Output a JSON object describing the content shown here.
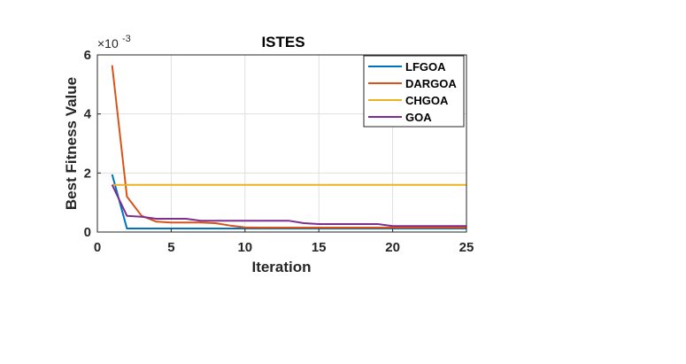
{
  "chart_data": {
    "type": "line",
    "title": "ISTES",
    "xlabel": "Iteration",
    "ylabel": "Best Fitness Value",
    "y_exponent_base": "×10",
    "y_exponent_power": "-3",
    "xlim": [
      0,
      25
    ],
    "ylim": [
      0,
      6
    ],
    "xticks": [
      0,
      5,
      10,
      15,
      20,
      25
    ],
    "yticks": [
      0,
      2,
      4,
      6
    ],
    "grid": true,
    "legend_position": "top-right",
    "x": [
      1,
      2,
      3,
      4,
      5,
      6,
      7,
      8,
      9,
      10,
      11,
      12,
      13,
      14,
      15,
      16,
      17,
      18,
      19,
      20,
      21,
      22,
      23,
      24,
      25
    ],
    "series": [
      {
        "name": "LFGOA",
        "color": "#0072BD",
        "values": [
          1.95,
          0.12,
          0.12,
          0.12,
          0.12,
          0.12,
          0.12,
          0.12,
          0.12,
          0.12,
          0.12,
          0.12,
          0.12,
          0.12,
          0.12,
          0.12,
          0.12,
          0.12,
          0.12,
          0.12,
          0.12,
          0.12,
          0.12,
          0.12,
          0.12
        ]
      },
      {
        "name": "DARGOA",
        "color": "#D95319",
        "values": [
          5.65,
          1.2,
          0.55,
          0.35,
          0.32,
          0.32,
          0.32,
          0.3,
          0.22,
          0.16,
          0.15,
          0.15,
          0.15,
          0.15,
          0.15,
          0.15,
          0.15,
          0.15,
          0.15,
          0.15,
          0.15,
          0.15,
          0.15,
          0.15,
          0.15
        ]
      },
      {
        "name": "CHGOA",
        "color": "#EDB120",
        "values": [
          1.6,
          1.6,
          1.6,
          1.6,
          1.6,
          1.6,
          1.6,
          1.6,
          1.6,
          1.6,
          1.6,
          1.6,
          1.6,
          1.6,
          1.6,
          1.6,
          1.6,
          1.6,
          1.6,
          1.6,
          1.6,
          1.6,
          1.6,
          1.6,
          1.6
        ]
      },
      {
        "name": "GOA",
        "color": "#7E2F8E",
        "values": [
          1.6,
          0.55,
          0.52,
          0.45,
          0.45,
          0.45,
          0.38,
          0.38,
          0.38,
          0.38,
          0.38,
          0.38,
          0.38,
          0.3,
          0.27,
          0.27,
          0.27,
          0.27,
          0.27,
          0.2,
          0.2,
          0.2,
          0.2,
          0.2,
          0.2
        ]
      }
    ]
  }
}
